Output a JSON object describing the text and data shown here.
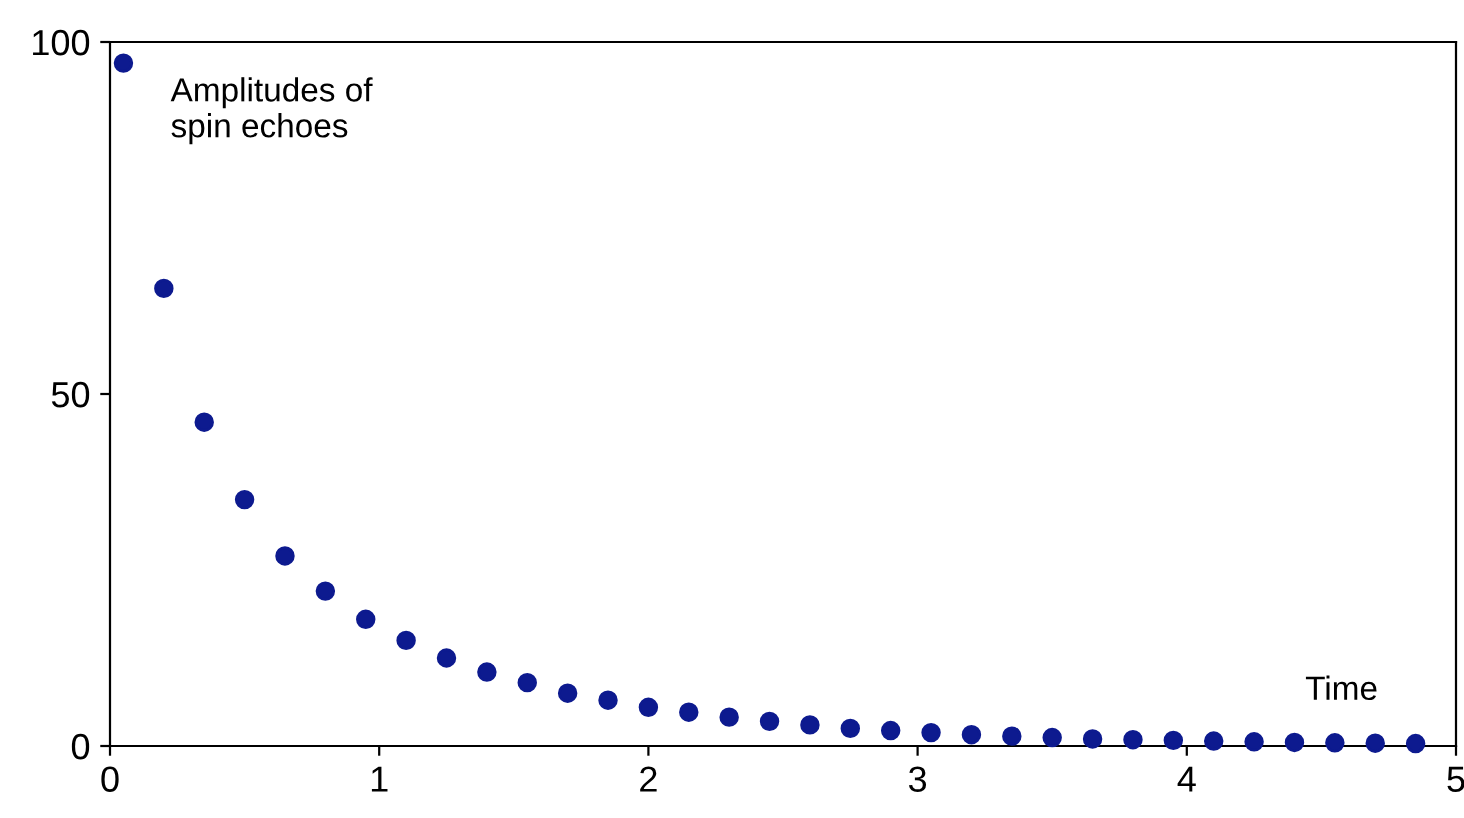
{
  "chart_data": {
    "type": "scatter",
    "xlabel": "Time",
    "annotations": [
      "Amplitudes of\nspin echoes"
    ],
    "x": [
      0.05,
      0.2,
      0.35,
      0.5,
      0.65,
      0.8,
      0.95,
      1.1,
      1.25,
      1.4,
      1.55,
      1.7,
      1.85,
      2.0,
      2.15,
      2.3,
      2.45,
      2.6,
      2.75,
      2.9,
      3.05,
      3.2,
      3.35,
      3.5,
      3.65,
      3.8,
      3.95,
      4.1,
      4.25,
      4.4,
      4.55,
      4.7,
      4.85
    ],
    "series": [
      {
        "color": "#0d1a8f",
        "values": [
          97,
          65,
          46,
          35,
          27,
          22,
          18,
          15,
          12.5,
          10.5,
          9,
          7.5,
          6.5,
          5.5,
          4.8,
          4.1,
          3.5,
          3,
          2.5,
          2.2,
          1.9,
          1.6,
          1.4,
          1.2,
          1,
          0.9,
          0.8,
          0.7,
          0.6,
          0.5,
          0.45,
          0.4,
          0.35
        ]
      }
    ],
    "xlim": [
      0,
      5
    ],
    "xticks": [
      0,
      1,
      2,
      3,
      4,
      5
    ],
    "ylim": [
      0,
      100
    ],
    "yticks": [
      0,
      50,
      100
    ],
    "marker": "circle",
    "grid": false,
    "legend": false
  }
}
